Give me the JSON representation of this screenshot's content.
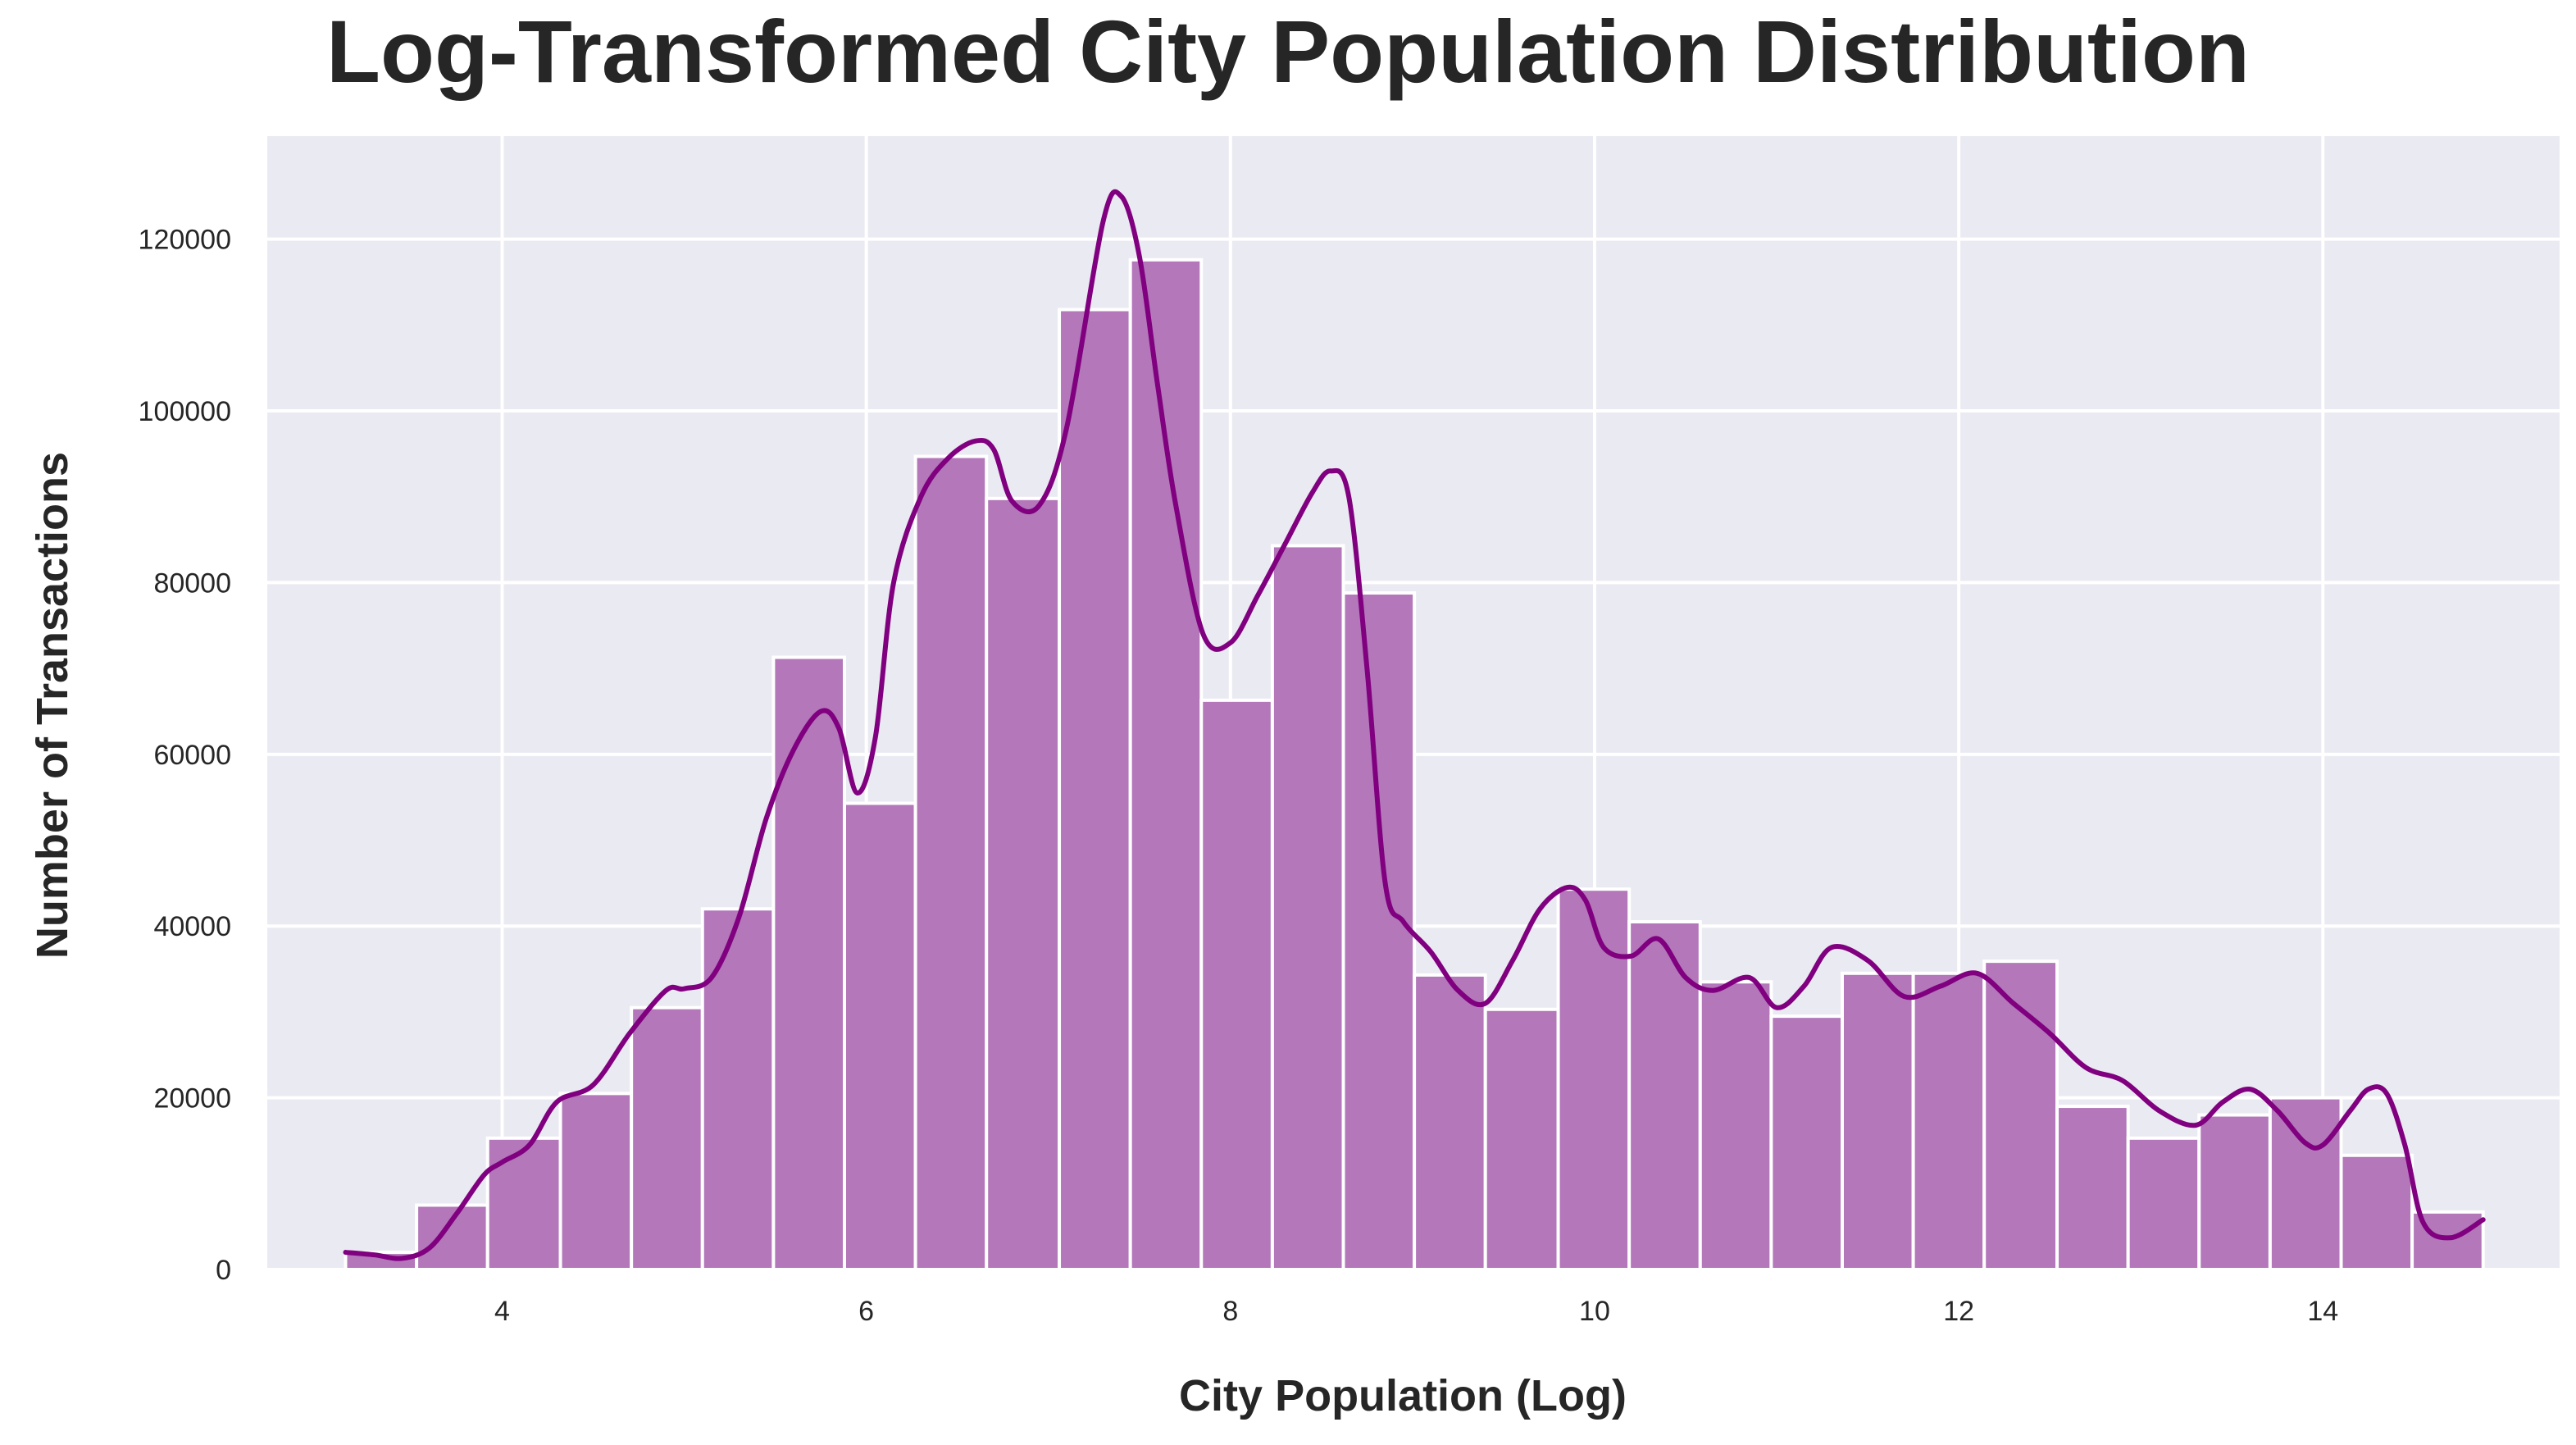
{
  "chart_data": {
    "type": "bar",
    "title": "Log-Transformed City Population Distribution",
    "xlabel": "City Population (Log)",
    "ylabel": "Number of Transactions",
    "xlim": [
      2.71,
      15.3
    ],
    "ylim": [
      0,
      132000
    ],
    "xticks": [
      4,
      6,
      8,
      10,
      12,
      14
    ],
    "yticks": [
      0,
      20000,
      40000,
      60000,
      80000,
      100000,
      120000
    ],
    "grid": true,
    "colors": {
      "bar_fill": "#B377BA",
      "bar_edge": "#FFFFFF",
      "kde_line": "#800080",
      "plot_background": "#EAEAF2",
      "grid": "#FFFFFF",
      "text": "#262626"
    },
    "bins": {
      "edges": [
        3.14,
        3.53,
        3.92,
        4.32,
        4.71,
        5.1,
        5.49,
        5.88,
        6.27,
        6.66,
        7.06,
        7.45,
        7.84,
        8.23,
        8.62,
        9.01,
        9.4,
        9.8,
        10.19,
        10.58,
        10.97,
        11.36,
        11.75,
        12.14,
        12.54,
        12.93,
        13.32,
        13.71,
        14.1,
        14.49,
        14.88
      ],
      "counts": [
        2000,
        7500,
        15300,
        20500,
        30500,
        42000,
        71300,
        54300,
        94700,
        89800,
        111800,
        117600,
        66300,
        84300,
        78800,
        34300,
        30300,
        44300,
        40500,
        33500,
        29500,
        34500,
        34500,
        35900,
        19000,
        15300,
        18000,
        20000,
        13300,
        6700
      ]
    },
    "kde": {
      "x": [
        3.14,
        3.3,
        3.45,
        3.6,
        3.75,
        3.9,
        4.0,
        4.15,
        4.3,
        4.5,
        4.7,
        4.9,
        5.0,
        5.15,
        5.3,
        5.45,
        5.6,
        5.75,
        5.85,
        5.95,
        6.05,
        6.15,
        6.3,
        6.45,
        6.6,
        6.7,
        6.8,
        6.95,
        7.1,
        7.3,
        7.4,
        7.5,
        7.6,
        7.7,
        7.85,
        8.0,
        8.15,
        8.3,
        8.45,
        8.55,
        8.65,
        8.75,
        8.85,
        8.95,
        9.1,
        9.25,
        9.4,
        9.55,
        9.7,
        9.85,
        9.95,
        10.05,
        10.2,
        10.35,
        10.5,
        10.65,
        10.85,
        11.0,
        11.15,
        11.3,
        11.5,
        11.7,
        11.9,
        12.1,
        12.3,
        12.5,
        12.7,
        12.9,
        13.1,
        13.3,
        13.45,
        13.6,
        13.75,
        13.9,
        14.0,
        14.15,
        14.25,
        14.35,
        14.45,
        14.55,
        14.7,
        14.88
      ],
      "y": [
        2000,
        1700,
        1300,
        2500,
        6500,
        11000,
        12500,
        14500,
        19500,
        21500,
        27500,
        32500,
        32700,
        34000,
        41000,
        52500,
        60500,
        65000,
        63000,
        55500,
        62000,
        80000,
        90000,
        94500,
        96500,
        95500,
        89500,
        89000,
        98000,
        122000,
        125000,
        118000,
        103000,
        89000,
        74000,
        73000,
        78500,
        84500,
        90500,
        93000,
        90000,
        70000,
        45000,
        40500,
        37000,
        32500,
        31000,
        36000,
        42000,
        44500,
        43000,
        37500,
        36500,
        38500,
        34000,
        32500,
        34000,
        30500,
        33000,
        37500,
        36000,
        31800,
        33000,
        34500,
        31000,
        27500,
        23500,
        22000,
        18500,
        16800,
        19500,
        21000,
        18500,
        14800,
        14500,
        18500,
        21000,
        20500,
        14500,
        5500,
        3700,
        5800
      ]
    }
  }
}
